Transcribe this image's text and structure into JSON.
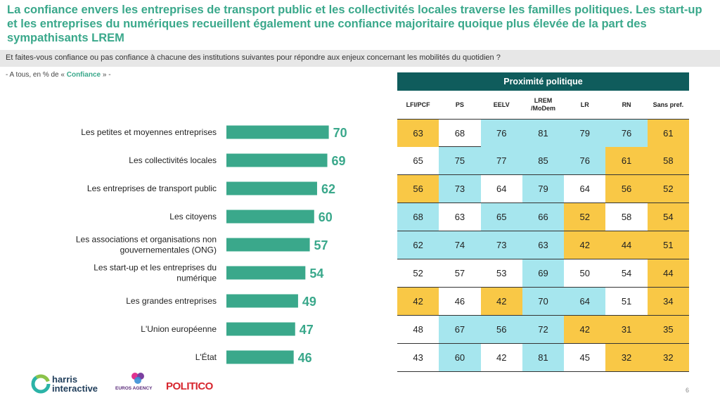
{
  "title": "La confiance envers les entreprises de transport public et les collectivités locales traverse les familles politiques. Les start-up et les entreprises du numériques recueillent également une confiance majoritaire quoique plus élevée de la part des sympathisants LREM",
  "question": "Et faites-vous confiance ou pas confiance à chacune des institutions suivantes pour répondre aux enjeux concernant les mobilités du quotidien ?",
  "base": {
    "prefix": "- A tous, en % de « ",
    "highlight": "Confiance",
    "suffix": " » -"
  },
  "colors": {
    "bar": "#3aa88b",
    "header": "#0f5c5c",
    "above": "#a6e6ee",
    "below": "#f9c846"
  },
  "chart_data": {
    "type": "bar",
    "orientation": "horizontal",
    "categories": [
      "Les petites et moyennes entreprises",
      "Les collectivités locales",
      "Les entreprises de transport public",
      "Les citoyens",
      "Les associations et organisations non gouvernementales (ONG)",
      "Les start-up et les entreprises du numérique",
      "Les grandes entreprises",
      "L'Union européenne",
      "L'État"
    ],
    "values": [
      70,
      69,
      62,
      60,
      57,
      54,
      49,
      47,
      46
    ],
    "xlim": [
      0,
      100
    ],
    "grid": false
  },
  "table": {
    "header": "Proximité politique",
    "columns": [
      "LFI/PCF",
      "PS",
      "EELV",
      "LREM /MoDem",
      "LR",
      "RN",
      "Sans pref."
    ],
    "rows": [
      {
        "values": [
          "63",
          "68",
          "76",
          "81",
          "79",
          "76",
          "61"
        ],
        "status": [
          "lo",
          "",
          "hi",
          "hi",
          "hi",
          "hi",
          "lo"
        ]
      },
      {
        "values": [
          "65",
          "75",
          "77",
          "85",
          "76",
          "61",
          "58"
        ],
        "status": [
          "",
          "hi",
          "hi",
          "hi",
          "hi",
          "lo",
          "lo"
        ]
      },
      {
        "values": [
          "56",
          "73",
          "64",
          "79",
          "64",
          "56",
          "52"
        ],
        "status": [
          "lo",
          "hi",
          "",
          "hi",
          "",
          "lo",
          "lo"
        ]
      },
      {
        "values": [
          "68",
          "63",
          "65",
          "66",
          "52",
          "58",
          "54"
        ],
        "status": [
          "hi",
          "",
          "hi",
          "hi",
          "lo",
          "",
          "lo"
        ]
      },
      {
        "values": [
          "62",
          "74",
          "73",
          "63",
          "42",
          "44",
          "51"
        ],
        "status": [
          "hi",
          "hi",
          "hi",
          "hi",
          "lo",
          "lo",
          "lo"
        ]
      },
      {
        "values": [
          "52",
          "57",
          "53",
          "69",
          "50",
          "54",
          "44"
        ],
        "status": [
          "",
          "",
          "",
          "hi",
          "",
          "",
          "lo"
        ]
      },
      {
        "values": [
          "42",
          "46",
          "42",
          "70",
          "64",
          "51",
          "34"
        ],
        "status": [
          "lo",
          "",
          "lo",
          "hi",
          "hi",
          "",
          "lo"
        ]
      },
      {
        "values": [
          "48",
          "67",
          "56",
          "72",
          "42",
          "31",
          "35"
        ],
        "status": [
          "",
          "hi",
          "hi",
          "hi",
          "lo",
          "lo",
          "lo"
        ]
      },
      {
        "values": [
          "43",
          "60",
          "42",
          "81",
          "45",
          "32",
          "32"
        ],
        "status": [
          "",
          "hi",
          "",
          "hi",
          "",
          "lo",
          "lo"
        ]
      }
    ]
  },
  "logos": {
    "harris_line1": "harris",
    "harris_line2": "interactive",
    "euros": "EUROS AGENCY",
    "politico": "POLITICO"
  },
  "page_number": "6"
}
